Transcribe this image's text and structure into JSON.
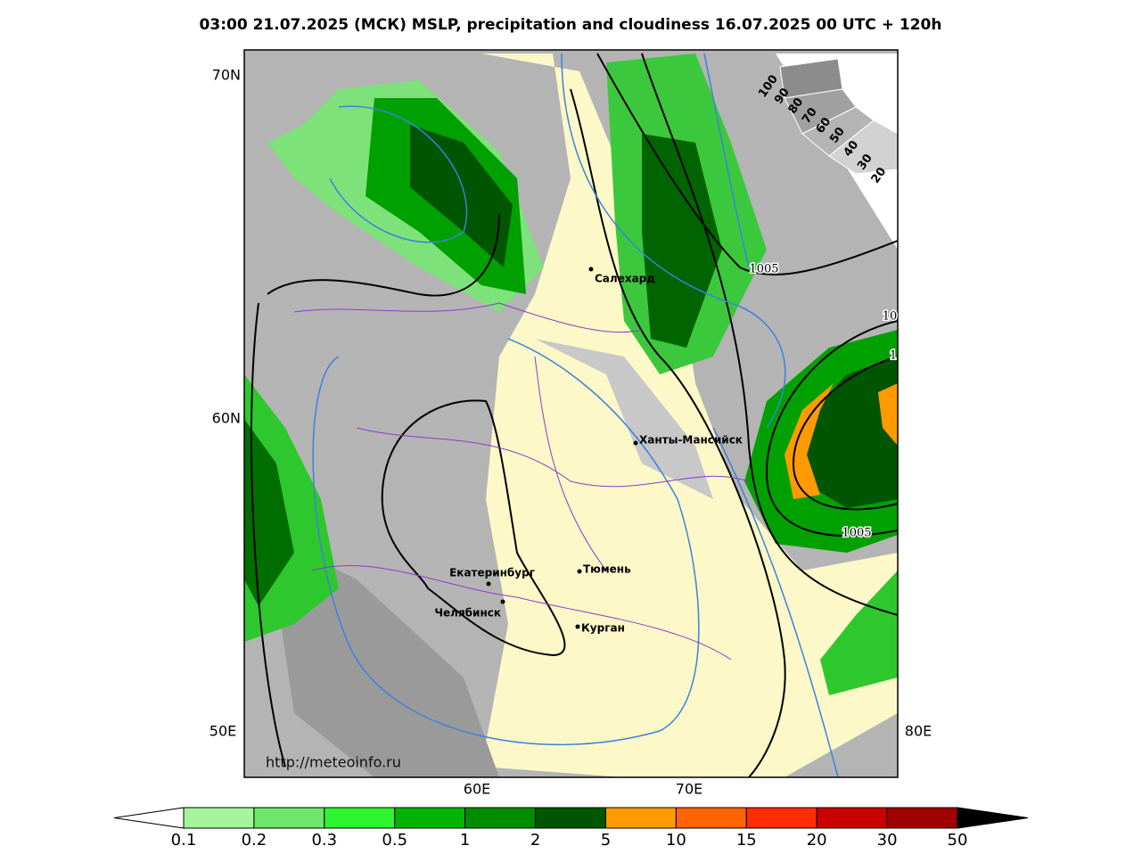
{
  "title": "03:00 21.07.2025 (МСК) MSLP, precipitation and cloudiness 16.07.2025 00 UTC + 120h",
  "latitude_labels": [
    "70N",
    "60N"
  ],
  "longitude_labels": [
    "50E",
    "60E",
    "70E",
    "80E"
  ],
  "cities": [
    "Салехард",
    "Ханты-Мансийск",
    "Екатеринбург",
    "Тюмень",
    "Челябинск",
    "Курган"
  ],
  "isobar_labels": [
    "1005",
    "1005",
    "10",
    "1"
  ],
  "cloudiness_scale": [
    "100",
    "90",
    "80",
    "70",
    "60",
    "50",
    "40",
    "30",
    "20"
  ],
  "source": "http://meteoinfo.ru",
  "precipitation_legend": {
    "ticks": [
      "0.1",
      "0.2",
      "0.3",
      "0.5",
      "1",
      "2",
      "5",
      "10",
      "15",
      "20",
      "30",
      "50"
    ],
    "colors": [
      "#a5f59b",
      "#6ee66a",
      "#2ef52e",
      "#00b400",
      "#008c00",
      "#005500",
      "#ff9b00",
      "#ff6400",
      "#ff2d00",
      "#c80000",
      "#a00000"
    ]
  }
}
